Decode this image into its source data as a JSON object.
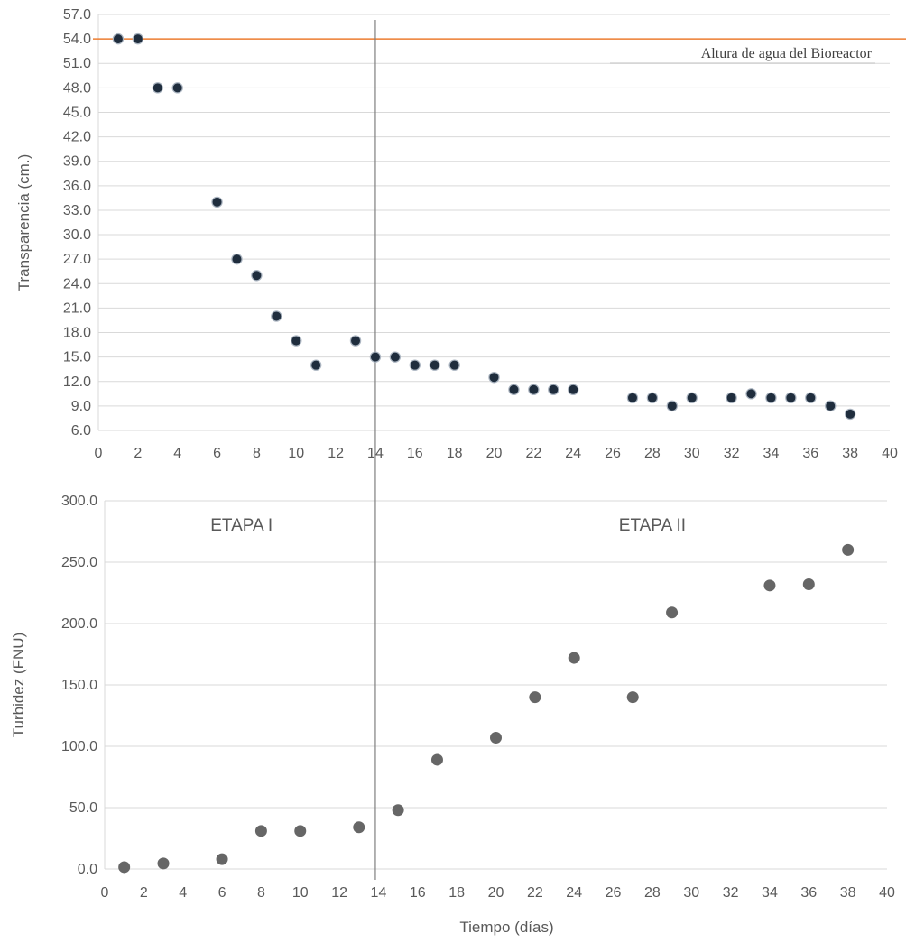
{
  "chart_data": [
    {
      "type": "scatter",
      "title": "",
      "xlabel": "",
      "ylabel": "Transparencia (cm.)",
      "xlim": [
        0,
        40
      ],
      "ylim": [
        6.0,
        57.0
      ],
      "x_ticks": [
        "0",
        "2",
        "4",
        "6",
        "8",
        "10",
        "12",
        "14",
        "16",
        "18",
        "20",
        "22",
        "24",
        "26",
        "28",
        "30",
        "32",
        "34",
        "36",
        "38",
        "40"
      ],
      "y_ticks": [
        "6.0",
        "9.0",
        "12.0",
        "15.0",
        "18.0",
        "21.0",
        "24.0",
        "27.0",
        "30.0",
        "33.0",
        "36.0",
        "39.0",
        "42.0",
        "45.0",
        "48.0",
        "51.0",
        "54.0",
        "57.0"
      ],
      "grid": "horizontal",
      "marker_color": "#1f2d3d",
      "reference_line": {
        "y": 54.0,
        "label": "Altura de agua del Bioreactor",
        "color": "#ed7d31"
      },
      "divider_x": 14,
      "series": [
        {
          "x": [
            1,
            2,
            3,
            4,
            6,
            7,
            8,
            9,
            10,
            11,
            13,
            14,
            15,
            16,
            17,
            18,
            20,
            21,
            22,
            23,
            24,
            27,
            28,
            29,
            30,
            32,
            33,
            34,
            35,
            36,
            37,
            38
          ],
          "y": [
            54,
            54,
            48,
            48,
            34,
            27,
            25,
            20,
            17,
            14,
            17,
            15,
            15,
            14,
            14,
            14,
            12.5,
            11,
            11,
            11,
            11,
            10,
            10,
            9,
            10,
            10,
            10.5,
            10,
            10,
            10,
            9,
            8
          ]
        }
      ]
    },
    {
      "type": "scatter",
      "title": "",
      "xlabel": "Tiempo (días)",
      "ylabel": "Turbidez (FNU)",
      "xlim": [
        0,
        40
      ],
      "ylim": [
        0.0,
        300.0
      ],
      "x_ticks": [
        "0",
        "2",
        "4",
        "6",
        "8",
        "10",
        "12",
        "14",
        "16",
        "18",
        "20",
        "22",
        "24",
        "26",
        "28",
        "30",
        "32",
        "34",
        "36",
        "38",
        "40"
      ],
      "y_ticks": [
        "0.0",
        "50.0",
        "100.0",
        "150.0",
        "200.0",
        "250.0",
        "300.0"
      ],
      "grid": "horizontal",
      "marker_color": "#666666",
      "divider_x": 14,
      "annotations": [
        {
          "text": "ETAPA I",
          "x": 7,
          "y": 280
        },
        {
          "text": "ETAPA II",
          "x": 28,
          "y": 280
        }
      ],
      "series": [
        {
          "x": [
            1,
            3,
            6,
            8,
            10,
            13,
            15,
            17,
            20,
            22,
            24,
            27,
            29,
            34,
            36,
            38
          ],
          "y": [
            1.5,
            4.5,
            8,
            31,
            31,
            34,
            48,
            89,
            107,
            140,
            172,
            140,
            209,
            231,
            232,
            260
          ]
        }
      ]
    }
  ]
}
